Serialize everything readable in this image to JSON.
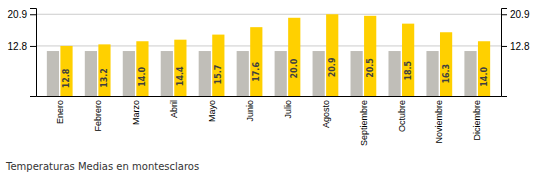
{
  "chart_data": {
    "type": "bar",
    "title": "Temperaturas Medias en montesclaros",
    "categories": [
      "Enero",
      "Febrero",
      "Marzo",
      "Abril",
      "Mayo",
      "Junio",
      "Julio",
      "Agosto",
      "Septiembre",
      "Octubre",
      "Noviembre",
      "Diciembre"
    ],
    "series": [
      {
        "color": "#C0BEB8",
        "values": [
          11.5,
          11.5,
          11.5,
          11.5,
          11.5,
          11.5,
          11.5,
          11.5,
          11.5,
          11.5,
          11.5,
          11.5
        ]
      },
      {
        "color": "#FFD000",
        "values": [
          12.8,
          13.2,
          14.0,
          14.4,
          15.7,
          17.6,
          20.0,
          20.9,
          20.5,
          18.5,
          16.3,
          14.0
        ],
        "data_labels": true,
        "value_labels": [
          "12.8",
          "13.2",
          "14.0",
          "14.4",
          "15.7",
          "17.6",
          "20.0",
          "20.9",
          "20.5",
          "18.5",
          "16.3",
          "14.0"
        ]
      }
    ],
    "ylim": [
      0,
      22.5
    ],
    "yticks": [
      12.8,
      20.9
    ],
    "grid": true
  }
}
